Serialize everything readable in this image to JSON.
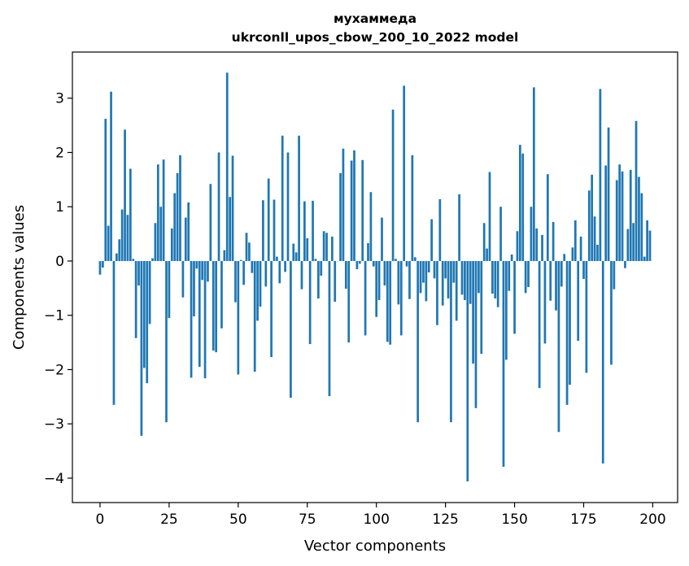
{
  "chart_data": {
    "type": "bar",
    "title_line1": "мухаммеда",
    "title_line2": "ukrconll_upos_cbow_200_10_2022 model",
    "xlabel": "Vector components",
    "ylabel": "Components values",
    "xlim": [
      -10,
      209
    ],
    "ylim": [
      -4.45,
      3.85
    ],
    "x_ticks": [
      0,
      25,
      50,
      75,
      100,
      125,
      150,
      175,
      200
    ],
    "y_ticks": [
      -4,
      -3,
      -2,
      -1,
      0,
      1,
      2,
      3
    ],
    "y_tick_labels": [
      "−4",
      "−3",
      "−2",
      "−1",
      "0",
      "1",
      "2",
      "3"
    ],
    "bar_color": "#1f77b4",
    "grid": false,
    "legend": "none",
    "values": [
      -0.25,
      -0.12,
      2.62,
      0.65,
      3.12,
      -2.65,
      0.14,
      0.4,
      0.95,
      2.42,
      0.85,
      1.7,
      0.04,
      -1.42,
      -0.45,
      -3.22,
      -1.97,
      -2.25,
      -1.16,
      0.05,
      0.7,
      1.78,
      1.0,
      1.87,
      -2.97,
      -1.05,
      0.6,
      1.25,
      1.62,
      1.95,
      -0.67,
      0.8,
      1.08,
      -2.15,
      -1.02,
      -0.14,
      -1.95,
      -0.35,
      -2.16,
      -0.38,
      1.42,
      -1.65,
      -1.68,
      2.0,
      -1.24,
      0.2,
      3.47,
      1.18,
      1.94,
      -0.76,
      -2.09,
      0.02,
      -0.44,
      0.52,
      0.34,
      -0.22,
      -2.04,
      -1.1,
      -0.84,
      1.12,
      -0.47,
      1.52,
      -1.77,
      1.13,
      0.08,
      -0.41,
      2.31,
      -0.2,
      2.0,
      -2.52,
      0.32,
      0.16,
      2.31,
      -0.52,
      1.1,
      0.42,
      -1.53,
      1.11,
      0.04,
      -0.69,
      -0.27,
      0.55,
      0.52,
      -2.49,
      0.45,
      -0.75,
      0.0,
      1.62,
      2.07,
      -0.51,
      -1.5,
      1.85,
      2.04,
      -0.15,
      -0.05,
      1.86,
      -1.37,
      0.33,
      1.27,
      -0.1,
      -1.03,
      -0.72,
      0.8,
      -0.45,
      -1.49,
      -1.54,
      2.79,
      0.04,
      -0.8,
      -1.37,
      3.23,
      -0.1,
      -0.7,
      1.95,
      0.07,
      -2.97,
      -0.59,
      -0.4,
      -0.74,
      -0.21,
      0.77,
      -0.32,
      -1.18,
      1.14,
      -0.82,
      -0.32,
      -0.69,
      -2.97,
      -0.4,
      -1.1,
      1.23,
      -0.62,
      -0.72,
      -4.06,
      -0.79,
      -1.89,
      -2.71,
      -0.59,
      -1.71,
      0.7,
      0.23,
      1.64,
      -0.6,
      -0.69,
      -0.85,
      1.0,
      -3.79,
      -1.82,
      -0.55,
      0.12,
      -1.34,
      0.55,
      2.14,
      1.98,
      -0.59,
      -0.48,
      1.0,
      3.2,
      0.6,
      -2.34,
      0.48,
      -1.52,
      1.6,
      -0.73,
      0.72,
      -0.91,
      -3.15,
      -0.47,
      0.13,
      -2.65,
      -2.28,
      0.25,
      0.75,
      -1.47,
      0.45,
      -0.33,
      -2.06,
      1.3,
      1.59,
      0.82,
      0.3,
      3.17,
      -3.73,
      1.76,
      2.46,
      -1.91,
      -0.52,
      1.49,
      1.78,
      1.65,
      -0.13,
      0.59,
      1.68,
      0.7,
      2.58,
      1.55,
      1.25,
      0.08,
      0.75,
      0.56
    ]
  }
}
